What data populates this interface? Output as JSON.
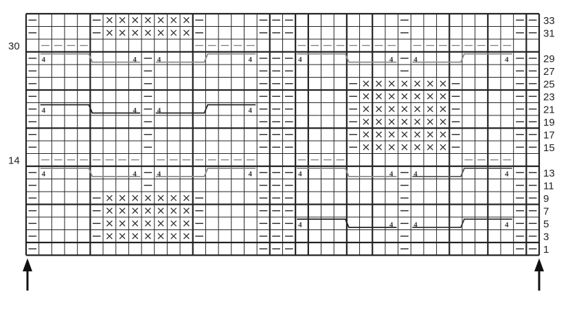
{
  "chart": {
    "columns": 40,
    "legend_symbols": {
      "-": "purl",
      "x": "cross stitch",
      ".": "knit / empty",
      "cable": "4-over-4 cable"
    },
    "rows": [
      {
        "label": "33",
        "side": "right",
        "cells": "-....-xxxxxxx-....---........-........--"
      },
      {
        "label": "31",
        "side": "right",
        "cells": "-....-xxxxxxx-....---........-........--"
      },
      {
        "label": "30",
        "side": "left",
        "cells": ".----........-----...--------.--------.."
      },
      {
        "label": "29",
        "side": "right",
        "cells": "-........-........---........-........--"
      },
      {
        "label": "27",
        "side": "right",
        "cells": "-........-........---........-........--"
      },
      {
        "label": "25",
        "side": "right",
        "cells": "-........-........---....-xxxxxxx-....--"
      },
      {
        "label": "23",
        "side": "right",
        "cells": "-........-........---....-xxxxxxx-....--"
      },
      {
        "label": "21",
        "side": "right",
        "cells": "-........-........---....-xxxxxxx-....--"
      },
      {
        "label": "19",
        "side": "right",
        "cells": "-........-........---....-xxxxxxx-....--"
      },
      {
        "label": "17",
        "side": "right",
        "cells": "-........-........---....-xxxxxxx-....--"
      },
      {
        "label": "15",
        "side": "right",
        "cells": "-........-........---....-xxxxxxx-....--"
      },
      {
        "label": "14",
        "side": "left",
        "cells": ".--------.--------...----.........----.."
      },
      {
        "label": "13",
        "side": "right",
        "cells": "-........-........---........-........--"
      },
      {
        "label": "11",
        "side": "right",
        "cells": "-........-........---........-........--"
      },
      {
        "label": "9",
        "side": "right",
        "cells": "-....-xxxxxxx-....---........-........--"
      },
      {
        "label": "7",
        "side": "right",
        "cells": "-....-xxxxxxx-....---........-........--"
      },
      {
        "label": "5",
        "side": "right",
        "cells": "-....-xxxxxxx-....---........-........--"
      },
      {
        "label": "3",
        "side": "right",
        "cells": "-....-xxxxxxx-....---........-........--"
      },
      {
        "label": "1",
        "side": "right",
        "cells": "-.................---........-........--"
      }
    ],
    "cables": [
      {
        "row": "29",
        "start_col": 1,
        "type": "top-to-bottom",
        "count": "4",
        "color": "#8a8a8a"
      },
      {
        "row": "29",
        "start_col": 10,
        "type": "bottom-to-top",
        "count": "4",
        "color": "#8a8a8a"
      },
      {
        "row": "29",
        "start_col": 21,
        "type": "top-to-bottom",
        "count": "4",
        "color": "#8a8a8a"
      },
      {
        "row": "29",
        "start_col": 30,
        "type": "bottom-to-top",
        "count": "4",
        "color": "#8a8a8a"
      },
      {
        "row": "21",
        "start_col": 1,
        "type": "top-to-bottom",
        "count": "4",
        "color": "#222222"
      },
      {
        "row": "21",
        "start_col": 10,
        "type": "bottom-to-top",
        "count": "4",
        "color": "#222222"
      },
      {
        "row": "13",
        "start_col": 1,
        "type": "top-to-bottom",
        "count": "4",
        "color": "#8a8a8a"
      },
      {
        "row": "13",
        "start_col": 10,
        "type": "bottom-to-top",
        "count": "4",
        "color": "#8a8a8a"
      },
      {
        "row": "13",
        "start_col": 21,
        "type": "top-to-bottom",
        "count": "4",
        "color": "#8a8a8a"
      },
      {
        "row": "13",
        "start_col": 30,
        "type": "bottom-to-top",
        "count": "4",
        "color": "#555555"
      },
      {
        "row": "5",
        "start_col": 21,
        "type": "top-to-bottom",
        "count": "4",
        "color": "#222222"
      },
      {
        "row": "5",
        "start_col": 30,
        "type": "bottom-to-top",
        "count": "4",
        "color": "#333333"
      }
    ],
    "bold_col_lines": [
      5,
      13,
      19,
      21,
      22,
      25,
      27,
      33,
      36,
      39
    ],
    "bold_row_lines_above": [
      "29",
      "23",
      "17",
      "13",
      "7",
      "1"
    ],
    "arrows": [
      {
        "position": "left",
        "direction": "up"
      },
      {
        "position": "right",
        "direction": "up"
      }
    ]
  }
}
